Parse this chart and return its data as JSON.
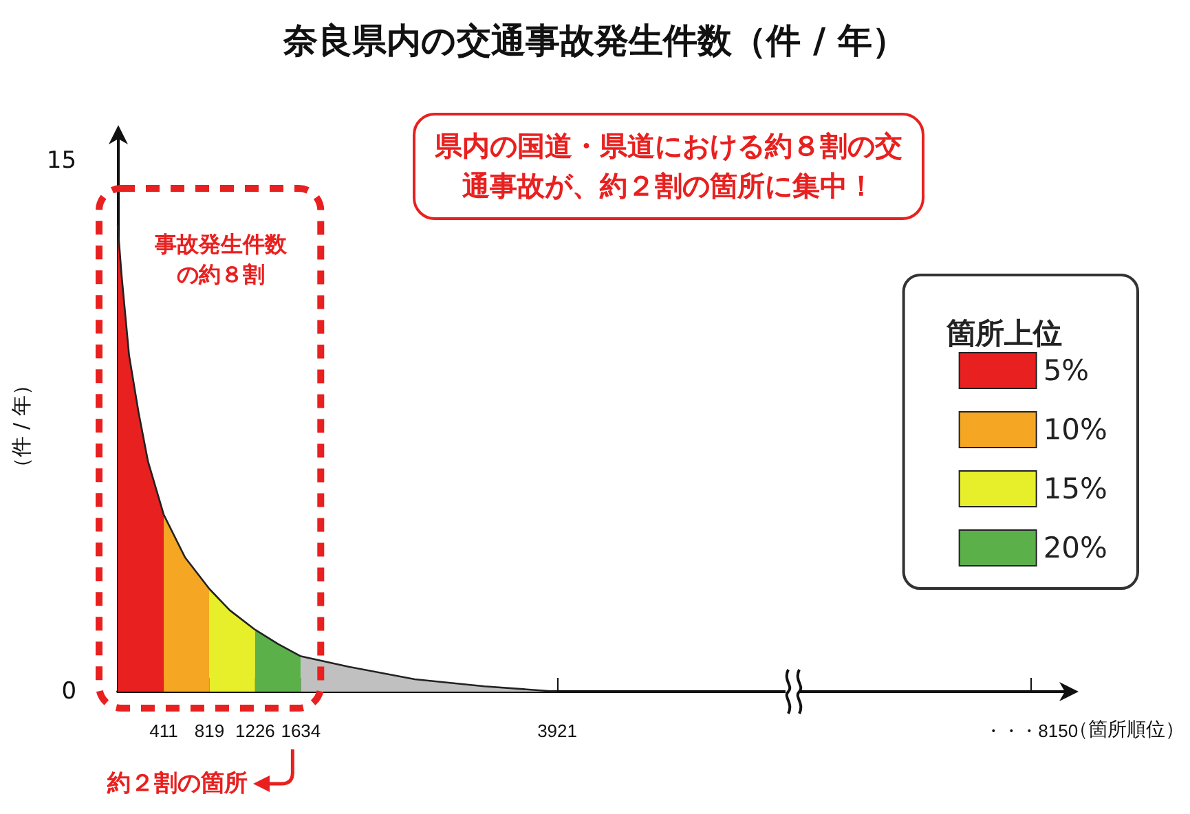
{
  "chart_data": {
    "type": "area",
    "title": "奈良県内の交通事故発生件数（件 / 年）",
    "ylabel": "（件 / 年）",
    "xlabel": "（箇所順位）",
    "legend_title": "箇所上位",
    "annotations": [
      "県内の国道・県道における約８割の交通事故が、約２割の箇所に集中！",
      "事故発生件数の約８割",
      "約２割の箇所"
    ],
    "xlim": [
      0,
      8400
    ],
    "xticks": [
      411,
      819,
      1226,
      1634,
      3921,
      {
        "value": 8150,
        "label": "・・・8150"
      }
    ],
    "ylim": [
      0,
      15
    ],
    "yticks": [
      0,
      15
    ],
    "series": [
      {
        "name": "5%",
        "color": "#e8201f",
        "x": [
          0,
          34,
          102,
          186,
          271,
          411
        ],
        "values": [
          13.2,
          11.8,
          9.5,
          7.9,
          6.5,
          5.0
        ]
      },
      {
        "name": "10%",
        "color": "#f5a623",
        "x": [
          411,
          600,
          819
        ],
        "values": [
          5.0,
          3.8,
          2.9
        ]
      },
      {
        "name": "15%",
        "color": "#e6ef2a",
        "x": [
          819,
          1000,
          1226
        ],
        "values": [
          2.9,
          2.3,
          1.75
        ]
      },
      {
        "name": "20%",
        "color": "#5bb04a",
        "x": [
          1226,
          1430,
          1634
        ],
        "values": [
          1.75,
          1.35,
          1.0
        ]
      },
      {
        "color": "#c0c0c0",
        "x": [
          1634,
          2066,
          2650,
          3270,
          3921
        ],
        "values": [
          1.0,
          0.7,
          0.35,
          0.15,
          0
        ]
      }
    ],
    "grid": false,
    "legend": "right",
    "marker": "none",
    "line_style": "solid"
  }
}
